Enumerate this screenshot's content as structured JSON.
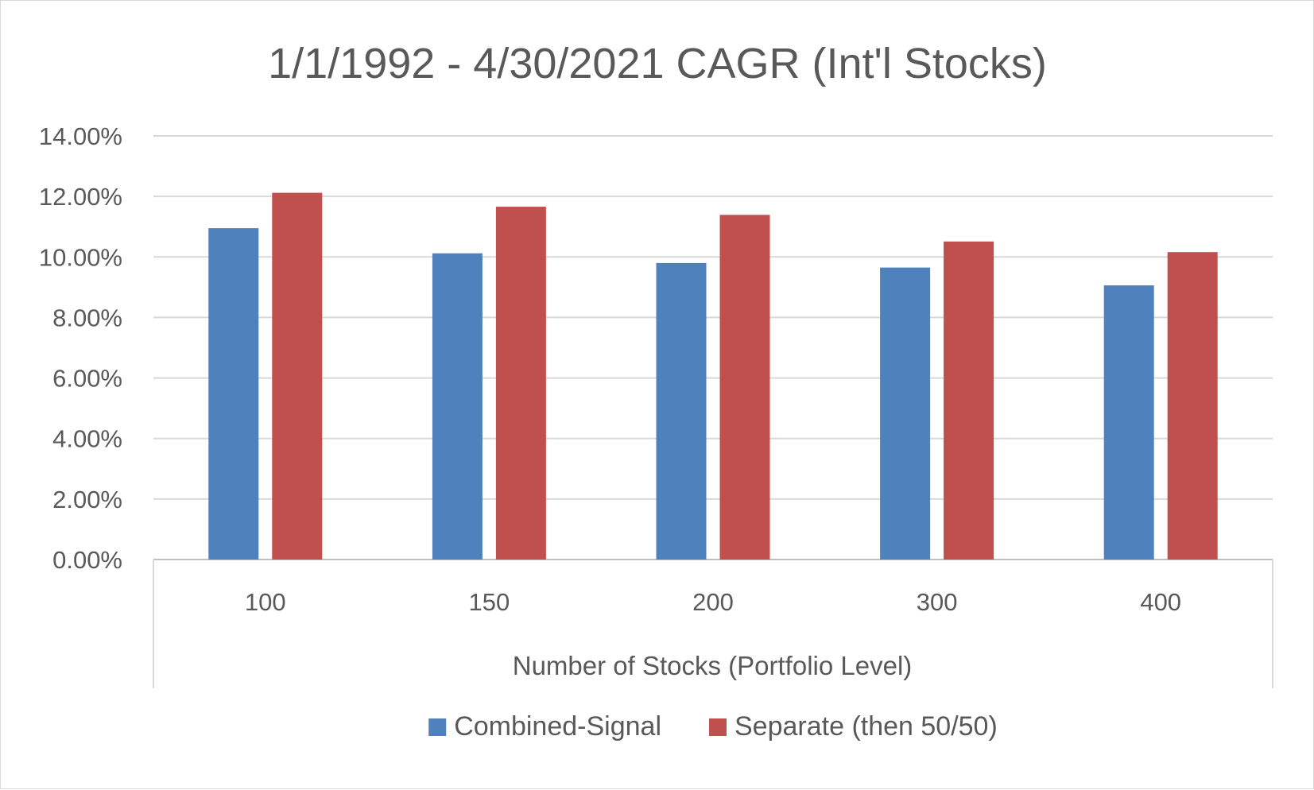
{
  "chart_data": {
    "type": "bar",
    "title": "1/1/1992 - 4/30/2021 CAGR (Int'l Stocks)",
    "xlabel": "Number of Stocks (Portfolio Level)",
    "ylabel": "",
    "categories": [
      "100",
      "150",
      "200",
      "300",
      "400"
    ],
    "series": [
      {
        "name": "Combined-Signal",
        "color": "#4f81bd",
        "values": [
          0.1095,
          0.1012,
          0.098,
          0.0965,
          0.0906
        ]
      },
      {
        "name": "Separate (then 50/50)",
        "color": "#c0504d",
        "values": [
          0.1212,
          0.1166,
          0.1139,
          0.1051,
          0.1016
        ]
      }
    ],
    "ylim": [
      0,
      0.14
    ],
    "yticks": [
      "0.00%",
      "2.00%",
      "4.00%",
      "6.00%",
      "8.00%",
      "10.00%",
      "12.00%",
      "14.00%"
    ],
    "grid": true,
    "legend": "bottom"
  }
}
